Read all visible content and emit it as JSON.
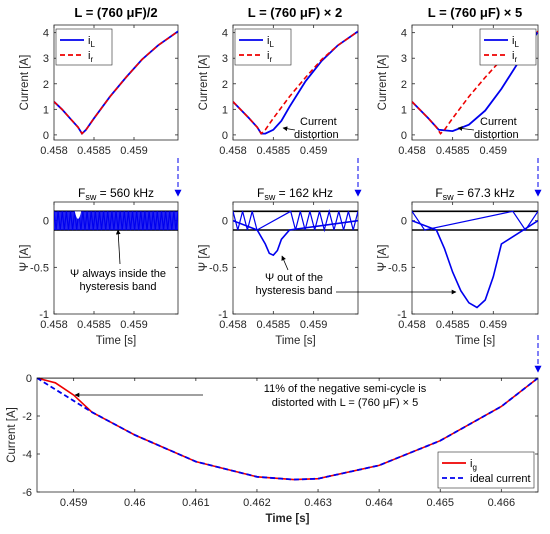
{
  "colors": {
    "blue": "#0000ee",
    "red": "#ee0000",
    "black": "#000000"
  },
  "titles": [
    "L = (760 μF)/2",
    "L = (760 μF) × 2",
    "L = (760 μF) × 5"
  ],
  "fsw": [
    "F_sw = 560 kHz",
    "F_sw = 162 kHz",
    "F_sw = 67.3 kHz"
  ],
  "fsw_parts": [
    {
      "pre": "F",
      "sub": "sw",
      "post": " = 560 kHz"
    },
    {
      "pre": "F",
      "sub": "sw",
      "post": " = 162 kHz"
    },
    {
      "pre": "F",
      "sub": "sw",
      "post": " = 67.3 kHz"
    }
  ],
  "annotations": {
    "current_distortion": "Current distortion",
    "psi_inside": "Ψ always inside the hysteresis band",
    "psi_out": "Ψ out of the hysteresis band",
    "bottom": "11% of the negative semi-cycle is distorted with L = (760 μF) × 5"
  },
  "chart_data": [
    {
      "type": "line",
      "title": "L = (760 μF)/2",
      "xlabel": "",
      "ylabel": "Current [A]",
      "xlim": [
        0.458,
        0.45955
      ],
      "ylim": [
        -0.2,
        4.3
      ],
      "xticks": [
        "0.458",
        "0.4585",
        "0.459"
      ],
      "yticks": [
        "0",
        "1",
        "2",
        "3",
        "4"
      ],
      "legend": "top-left",
      "series": [
        {
          "name": "i_L",
          "x": [
            0.458,
            0.4581,
            0.4582,
            0.4583,
            0.45835,
            0.4584,
            0.4585,
            0.4587,
            0.4589,
            0.4591,
            0.4593,
            0.45955
          ],
          "y": [
            1.3,
            1.0,
            0.65,
            0.3,
            0.05,
            0.2,
            0.65,
            1.5,
            2.25,
            2.95,
            3.5,
            4.05
          ]
        },
        {
          "name": "i_r",
          "x": [
            0.458,
            0.4581,
            0.4582,
            0.4583,
            0.45835,
            0.4584,
            0.4585,
            0.4587,
            0.4589,
            0.4591,
            0.4593,
            0.45955
          ],
          "y": [
            1.3,
            1.0,
            0.65,
            0.3,
            0.05,
            0.2,
            0.65,
            1.5,
            2.25,
            2.95,
            3.5,
            4.05
          ]
        }
      ]
    },
    {
      "type": "line",
      "title": "L = (760 μF) × 2",
      "xlabel": "",
      "ylabel": "Current [A]",
      "xlim": [
        0.458,
        0.45955
      ],
      "ylim": [
        -0.2,
        4.3
      ],
      "xticks": [
        "0.458",
        "0.4585",
        "0.459"
      ],
      "yticks": [
        "0",
        "1",
        "2",
        "3",
        "4"
      ],
      "legend": "top-left",
      "series": [
        {
          "name": "i_L",
          "x": [
            0.458,
            0.4582,
            0.4583,
            0.45835,
            0.4584,
            0.4585,
            0.4586,
            0.4587,
            0.4589,
            0.4591,
            0.4593,
            0.45955
          ],
          "y": [
            1.3,
            0.65,
            0.3,
            0.05,
            0.05,
            0.2,
            0.55,
            1.1,
            2.1,
            2.9,
            3.5,
            4.05
          ]
        },
        {
          "name": "i_r",
          "x": [
            0.458,
            0.4582,
            0.4583,
            0.45835,
            0.4584,
            0.4585,
            0.4587,
            0.4589,
            0.4591,
            0.4593,
            0.45955
          ],
          "y": [
            1.3,
            0.65,
            0.3,
            0.05,
            0.2,
            0.65,
            1.5,
            2.25,
            2.95,
            3.5,
            4.05
          ]
        }
      ]
    },
    {
      "type": "line",
      "title": "L = (760 μF) × 5",
      "xlabel": "",
      "ylabel": "Current [A]",
      "xlim": [
        0.458,
        0.45955
      ],
      "ylim": [
        -0.2,
        4.3
      ],
      "xticks": [
        "0.458",
        "0.4585",
        "0.459"
      ],
      "yticks": [
        "0",
        "1",
        "2",
        "3",
        "4"
      ],
      "legend": "top-right",
      "series": [
        {
          "name": "i_L",
          "x": [
            0.458,
            0.4582,
            0.45833,
            0.4585,
            0.4587,
            0.4589,
            0.4591,
            0.4593,
            0.45955
          ],
          "y": [
            1.3,
            0.65,
            0.2,
            0.15,
            0.4,
            0.95,
            1.8,
            2.8,
            4.05
          ]
        },
        {
          "name": "i_r",
          "x": [
            0.458,
            0.4582,
            0.4583,
            0.45835,
            0.4584,
            0.4585,
            0.4587,
            0.4589,
            0.4591,
            0.4593,
            0.45955
          ],
          "y": [
            1.3,
            0.65,
            0.3,
            0.05,
            0.2,
            0.65,
            1.5,
            2.25,
            2.95,
            3.5,
            4.05
          ]
        }
      ]
    },
    {
      "type": "line",
      "title": "",
      "xlabel": "Time [s]",
      "ylabel": "Ψ [A]",
      "xlim": [
        0.458,
        0.45955
      ],
      "ylim": [
        -1,
        0.2
      ],
      "xticks": [
        "0.458",
        "0.4585",
        "0.459"
      ],
      "yticks": [
        "0",
        "-0.5",
        "-1"
      ],
      "hysteresis_band": [
        -0.1,
        0.1
      ],
      "series": [
        {
          "name": "Ψ",
          "x": [
            0.458,
            0.45828,
            0.4583,
            0.45832,
            0.45834,
            0.4584,
            0.45955
          ],
          "y": [
            0.1,
            0.1,
            0.05,
            -0.04,
            0.05,
            0.1,
            0.1
          ]
        }
      ]
    },
    {
      "type": "line",
      "title": "",
      "xlabel": "Time [s]",
      "ylabel": "Ψ [A]",
      "xlim": [
        0.458,
        0.45955
      ],
      "ylim": [
        -1,
        0.2
      ],
      "xticks": [
        "0.458",
        "0.4585",
        "0.459"
      ],
      "yticks": [
        "0",
        "-0.5",
        "-1"
      ],
      "hysteresis_band": [
        -0.1,
        0.1
      ],
      "series": [
        {
          "name": "Ψ",
          "x": [
            0.458,
            0.4583,
            0.4584,
            0.45845,
            0.4585,
            0.45855,
            0.4586,
            0.4587,
            0.45955
          ],
          "y": [
            0.0,
            -0.1,
            -0.25,
            -0.35,
            -0.37,
            -0.32,
            -0.2,
            -0.1,
            0.0
          ]
        }
      ]
    },
    {
      "type": "line",
      "title": "",
      "xlabel": "Time [s]",
      "ylabel": "Ψ [A]",
      "xlim": [
        0.458,
        0.45955
      ],
      "ylim": [
        -1,
        0.2
      ],
      "xticks": [
        "0.458",
        "0.4585",
        "0.459"
      ],
      "yticks": [
        "0",
        "-0.5",
        "-1"
      ],
      "hysteresis_band": [
        -0.1,
        0.1
      ],
      "series": [
        {
          "name": "Ψ",
          "x": [
            0.458,
            0.4583,
            0.4584,
            0.4585,
            0.4586,
            0.4587,
            0.4588,
            0.4589,
            0.459,
            0.4591,
            0.45955
          ],
          "y": [
            0.0,
            -0.1,
            -0.3,
            -0.55,
            -0.75,
            -0.88,
            -0.93,
            -0.85,
            -0.6,
            -0.25,
            0.0
          ]
        }
      ]
    },
    {
      "type": "line",
      "title": "",
      "xlabel": "Time [s]",
      "ylabel": "Current [A]",
      "xlim": [
        0.4584,
        0.4666
      ],
      "ylim": [
        -6,
        0
      ],
      "xticks": [
        "0.459",
        "0.46",
        "0.461",
        "0.462",
        "0.463",
        "0.464",
        "0.465",
        "0.466"
      ],
      "yticks": [
        "0",
        "-2",
        "-4",
        "-6"
      ],
      "legend": "bottom-right",
      "series": [
        {
          "name": "i_g",
          "x": [
            0.4584,
            0.4587,
            0.459,
            0.4593,
            0.46,
            0.461,
            0.462,
            0.4626,
            0.463,
            0.464,
            0.465,
            0.466,
            0.4666
          ],
          "y": [
            0.0,
            -0.25,
            -0.9,
            -1.8,
            -3.0,
            -4.4,
            -5.2,
            -5.35,
            -5.3,
            -4.6,
            -3.3,
            -1.5,
            0.0
          ]
        },
        {
          "name": "ideal current",
          "x": [
            0.4584,
            0.4587,
            0.459,
            0.4593,
            0.46,
            0.461,
            0.462,
            0.4626,
            0.463,
            0.464,
            0.465,
            0.466,
            0.4666
          ],
          "y": [
            0.0,
            -0.6,
            -1.2,
            -1.8,
            -3.0,
            -4.4,
            -5.2,
            -5.35,
            -5.3,
            -4.6,
            -3.3,
            -1.5,
            0.0
          ]
        }
      ]
    }
  ]
}
